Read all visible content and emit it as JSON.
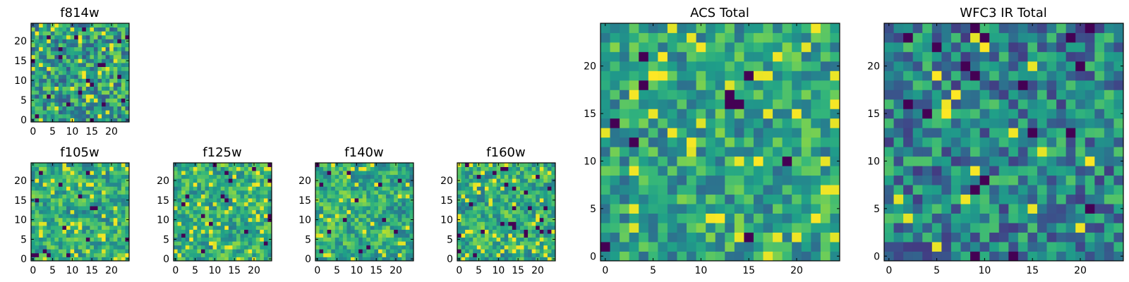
{
  "chart_data": [
    {
      "type": "heatmap",
      "title": "f814w",
      "x_ticks": [
        "0",
        "5",
        "10",
        "15",
        "20"
      ],
      "y_ticks": [
        "0",
        "5",
        "10",
        "15",
        "20"
      ],
      "xlim": [
        0,
        25
      ],
      "ylim": [
        0,
        25
      ],
      "grid_size": 25,
      "colormap": "viridis",
      "seed": 17,
      "style": "noisy",
      "dark_fraction": 0.03,
      "bright_fraction": 0.06
    },
    {
      "type": "heatmap",
      "title": "f105w",
      "x_ticks": [
        "0",
        "5",
        "10",
        "15",
        "20"
      ],
      "y_ticks": [
        "0",
        "5",
        "10",
        "15",
        "20"
      ],
      "xlim": [
        0,
        25
      ],
      "ylim": [
        0,
        25
      ],
      "grid_size": 25,
      "colormap": "viridis",
      "seed": 29,
      "style": "smooth",
      "dark_fraction": 0.02,
      "bright_fraction": 0.08
    },
    {
      "type": "heatmap",
      "title": "f125w",
      "x_ticks": [
        "0",
        "5",
        "10",
        "15",
        "20"
      ],
      "y_ticks": [
        "0",
        "5",
        "10",
        "15",
        "20"
      ],
      "xlim": [
        0,
        25
      ],
      "ylim": [
        0,
        25
      ],
      "grid_size": 25,
      "colormap": "viridis",
      "seed": 41,
      "style": "smooth",
      "dark_fraction": 0.02,
      "bright_fraction": 0.08
    },
    {
      "type": "heatmap",
      "title": "f140w",
      "x_ticks": [
        "0",
        "5",
        "10",
        "15",
        "20"
      ],
      "y_ticks": [
        "0",
        "5",
        "10",
        "15",
        "20"
      ],
      "xlim": [
        0,
        25
      ],
      "ylim": [
        0,
        25
      ],
      "grid_size": 25,
      "colormap": "viridis",
      "seed": 53,
      "style": "smooth",
      "dark_fraction": 0.03,
      "bright_fraction": 0.06
    },
    {
      "type": "heatmap",
      "title": "f160w",
      "x_ticks": [
        "0",
        "5",
        "10",
        "15",
        "20"
      ],
      "y_ticks": [
        "0",
        "5",
        "10",
        "15",
        "20"
      ],
      "xlim": [
        0,
        25
      ],
      "ylim": [
        0,
        25
      ],
      "grid_size": 25,
      "colormap": "viridis",
      "seed": 67,
      "style": "smooth",
      "dark_fraction": 0.03,
      "bright_fraction": 0.07
    },
    {
      "type": "heatmap",
      "title": "ACS Total",
      "x_ticks": [
        "0",
        "5",
        "10",
        "15",
        "20"
      ],
      "y_ticks": [
        "0",
        "5",
        "10",
        "15",
        "20"
      ],
      "xlim": [
        0,
        25
      ],
      "ylim": [
        0,
        25
      ],
      "grid_size": 25,
      "colormap": "viridis",
      "seed": 79,
      "style": "bright",
      "dark_fraction": 0.025,
      "bright_fraction": 0.05
    },
    {
      "type": "heatmap",
      "title": "WFC3 IR Total",
      "x_ticks": [
        "0",
        "5",
        "10",
        "15",
        "20"
      ],
      "y_ticks": [
        "0",
        "5",
        "10",
        "15",
        "20"
      ],
      "xlim": [
        0,
        25
      ],
      "ylim": [
        0,
        25
      ],
      "grid_size": 25,
      "colormap": "viridis",
      "seed": 97,
      "style": "mid",
      "dark_fraction": 0.035,
      "bright_fraction": 0.02
    }
  ]
}
